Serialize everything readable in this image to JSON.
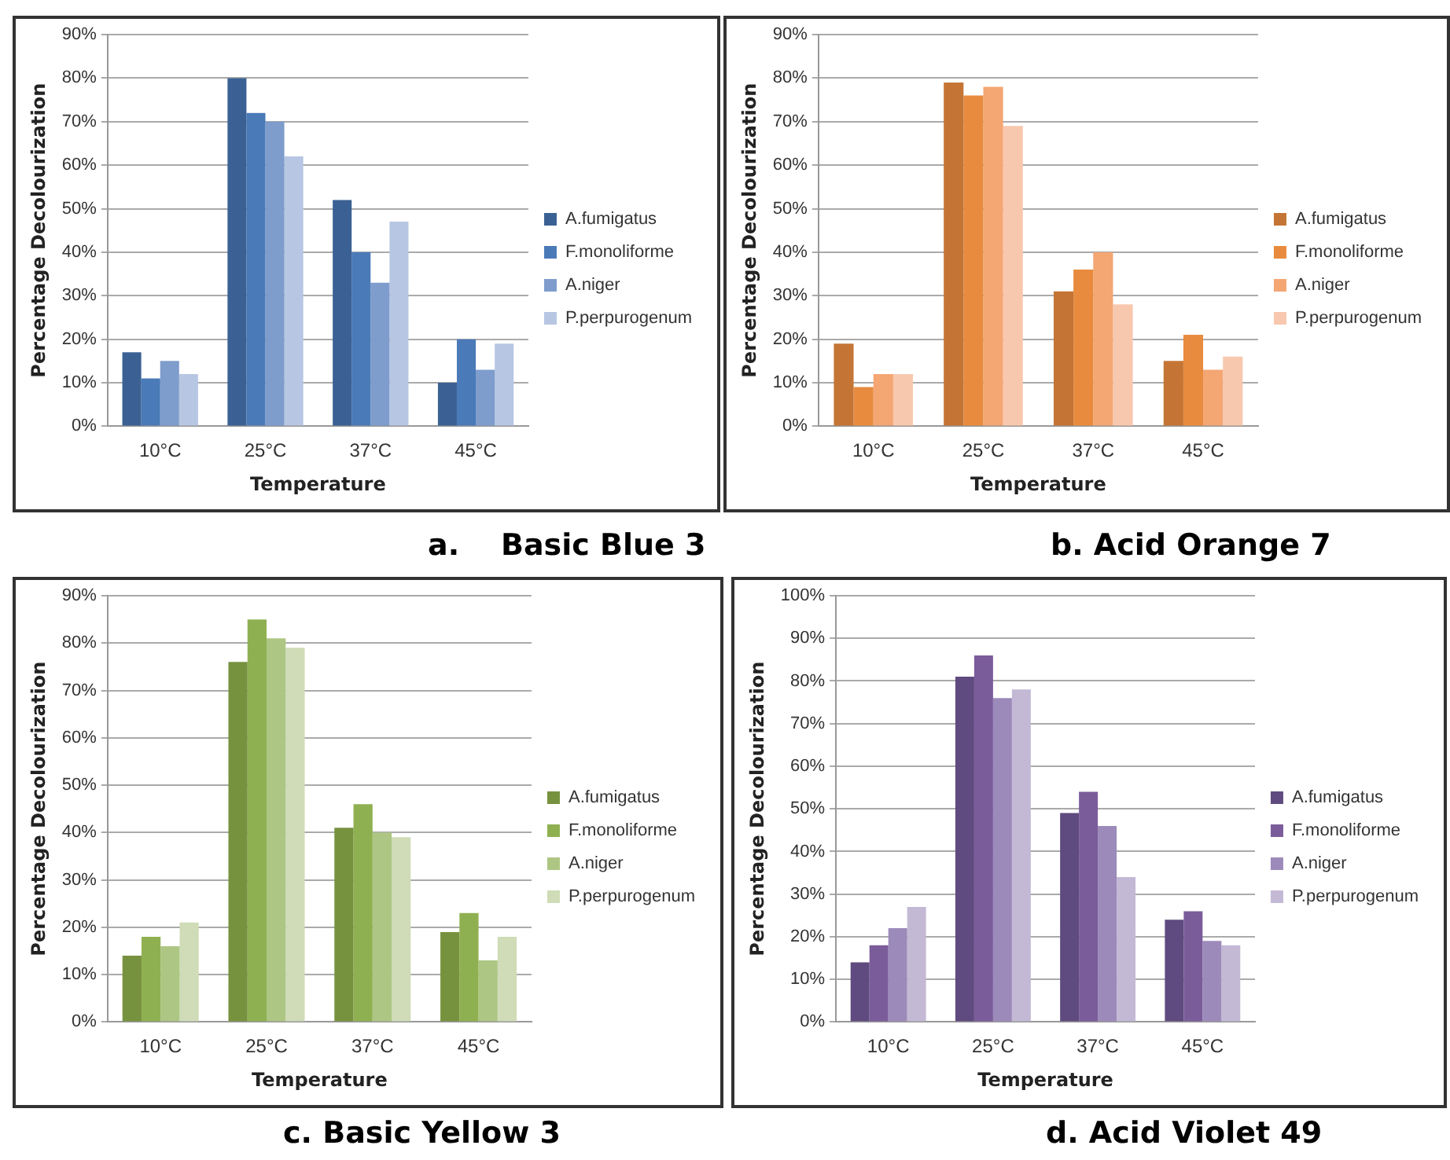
{
  "chart_data": [
    {
      "type": "bar",
      "title": "a.    Basic Blue 3",
      "xlabel": "Temperature",
      "ylabel": "Percentage Decolourization",
      "categories": [
        "10°C",
        "25°C",
        "37°C",
        "45°C"
      ],
      "series": [
        {
          "name": "A.fumigatus",
          "color": "#3b6194",
          "values": [
            17,
            80,
            52,
            10
          ]
        },
        {
          "name": "F.monoliforme",
          "color": "#4a7ab8",
          "values": [
            11,
            72,
            40,
            20
          ]
        },
        {
          "name": "A.niger",
          "color": "#7e9ccc",
          "values": [
            15,
            70,
            33,
            13
          ]
        },
        {
          "name": "P.perpurogenum",
          "color": "#b7c6e2",
          "values": [
            12,
            62,
            47,
            19
          ]
        }
      ],
      "ylim": [
        0,
        90
      ],
      "yticks": [
        {
          "value": 0,
          "label": "0%"
        },
        {
          "value": 10,
          "label": "10%"
        },
        {
          "value": 20,
          "label": "20%"
        },
        {
          "value": 30,
          "label": "30%"
        },
        {
          "value": 40,
          "label": "40%"
        },
        {
          "value": 50,
          "label": "50%"
        },
        {
          "value": 60,
          "label": "60%"
        },
        {
          "value": 70,
          "label": "70%"
        },
        {
          "value": 80,
          "label": "80%"
        },
        {
          "value": 90,
          "label": "90%"
        }
      ],
      "grid": "y",
      "legend": "right"
    },
    {
      "type": "bar",
      "title": "b. Acid Orange 7",
      "xlabel": "Temperature",
      "ylabel": "Percentage Decolourization",
      "categories": [
        "10°C",
        "25°C",
        "37°C",
        "45°C"
      ],
      "series": [
        {
          "name": "A.fumigatus",
          "color": "#c47535",
          "values": [
            19,
            79,
            31,
            15
          ]
        },
        {
          "name": "F.monoliforme",
          "color": "#e88b3e",
          "values": [
            9,
            76,
            36,
            21
          ]
        },
        {
          "name": "A.niger",
          "color": "#f4a673",
          "values": [
            12,
            78,
            40,
            13
          ]
        },
        {
          "name": "P.perpurogenum",
          "color": "#f8c8ae",
          "values": [
            12,
            69,
            28,
            16
          ]
        }
      ],
      "ylim": [
        0,
        90
      ],
      "yticks": [
        {
          "value": 0,
          "label": "0%"
        },
        {
          "value": 10,
          "label": "10%"
        },
        {
          "value": 20,
          "label": "20%"
        },
        {
          "value": 30,
          "label": "30%"
        },
        {
          "value": 40,
          "label": "40%"
        },
        {
          "value": 50,
          "label": "50%"
        },
        {
          "value": 60,
          "label": "60%"
        },
        {
          "value": 70,
          "label": "70%"
        },
        {
          "value": 80,
          "label": "80%"
        },
        {
          "value": 90,
          "label": "90%"
        }
      ],
      "grid": "y",
      "legend": "right"
    },
    {
      "type": "bar",
      "title": "c. Basic Yellow 3",
      "xlabel": "Temperature",
      "ylabel": "Percentage Decolourization",
      "categories": [
        "10°C",
        "25°C",
        "37°C",
        "45°C"
      ],
      "series": [
        {
          "name": "A.fumigatus",
          "color": "#77923e",
          "values": [
            14,
            76,
            41,
            19
          ]
        },
        {
          "name": "F.monoliforme",
          "color": "#8fb050",
          "values": [
            18,
            85,
            46,
            23
          ]
        },
        {
          "name": "A.niger",
          "color": "#adc683",
          "values": [
            16,
            81,
            40,
            13
          ]
        },
        {
          "name": "P.perpurogenum",
          "color": "#cfdcb7",
          "values": [
            21,
            79,
            39,
            18
          ]
        }
      ],
      "ylim": [
        0,
        90
      ],
      "yticks": [
        {
          "value": 0,
          "label": "0%"
        },
        {
          "value": 10,
          "label": "10%"
        },
        {
          "value": 20,
          "label": "20%"
        },
        {
          "value": 30,
          "label": "30%"
        },
        {
          "value": 40,
          "label": "40%"
        },
        {
          "value": 50,
          "label": "50%"
        },
        {
          "value": 60,
          "label": "60%"
        },
        {
          "value": 70,
          "label": "70%"
        },
        {
          "value": 80,
          "label": "80%"
        },
        {
          "value": 90,
          "label": "90%"
        }
      ],
      "grid": "y",
      "legend": "right"
    },
    {
      "type": "bar",
      "title": "d. Acid Violet 49",
      "xlabel": "Temperature",
      "ylabel": "Percentage Decolourization",
      "categories": [
        "10°C",
        "25°C",
        "37°C",
        "45°C"
      ],
      "series": [
        {
          "name": "A.fumigatus",
          "color": "#5f4b7f",
          "values": [
            14,
            81,
            49,
            24
          ]
        },
        {
          "name": "F.monoliforme",
          "color": "#7a5c9a",
          "values": [
            18,
            86,
            54,
            26
          ]
        },
        {
          "name": "A.niger",
          "color": "#9c8aba",
          "values": [
            22,
            76,
            46,
            19
          ]
        },
        {
          "name": "P.perpurogenum",
          "color": "#c4b9d5",
          "values": [
            27,
            78,
            34,
            18
          ]
        }
      ],
      "ylim": [
        0,
        100
      ],
      "yticks": [
        {
          "value": 0,
          "label": "0%"
        },
        {
          "value": 10,
          "label": "10%"
        },
        {
          "value": 20,
          "label": "20%"
        },
        {
          "value": 30,
          "label": "30%"
        },
        {
          "value": 40,
          "label": "40%"
        },
        {
          "value": 50,
          "label": "50%"
        },
        {
          "value": 60,
          "label": "60%"
        },
        {
          "value": 70,
          "label": "70%"
        },
        {
          "value": 80,
          "label": "80%"
        },
        {
          "value": 90,
          "label": "90%"
        },
        {
          "value": 100,
          "label": "100%"
        }
      ],
      "grid": "y",
      "legend": "right"
    }
  ]
}
